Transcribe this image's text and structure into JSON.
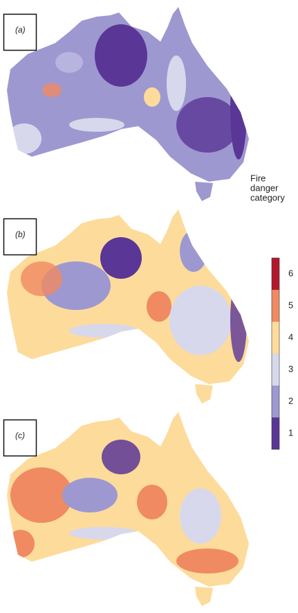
{
  "panels": [
    {
      "label": "(a)"
    },
    {
      "label": "(b)"
    },
    {
      "label": "(c)"
    }
  ],
  "legend": {
    "title_lines": [
      "Fire",
      "danger",
      "category"
    ],
    "categories": [
      {
        "label": "6",
        "color": "#b2182b"
      },
      {
        "label": "5",
        "color": "#ef8a62"
      },
      {
        "label": "4",
        "color": "#fddb9b"
      },
      {
        "label": "3",
        "color": "#d8d8ec"
      },
      {
        "label": "2",
        "color": "#9e98d0"
      },
      {
        "label": "1",
        "color": "#5a3696"
      }
    ]
  }
}
